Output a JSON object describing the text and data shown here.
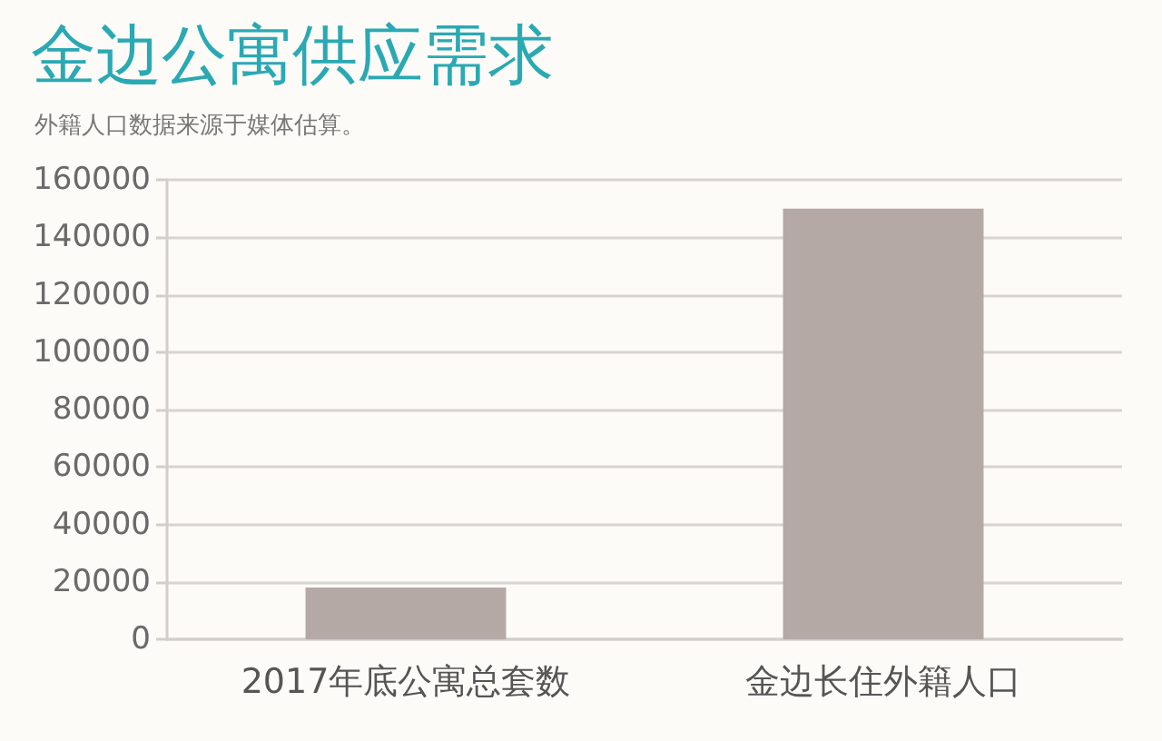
{
  "chart_data": {
    "type": "bar",
    "title": "金边公寓供应需求",
    "subtitle": "外籍人口数据来源于媒体估算。",
    "categories": [
      "2017年底公寓总套数",
      "金边长住外籍人口"
    ],
    "values": [
      18000,
      150000
    ],
    "color": "#b4a9a4",
    "ylim": [
      0,
      160000
    ],
    "yticks": [
      0,
      20000,
      40000,
      60000,
      80000,
      100000,
      120000,
      140000,
      160000
    ],
    "grid": "y"
  }
}
